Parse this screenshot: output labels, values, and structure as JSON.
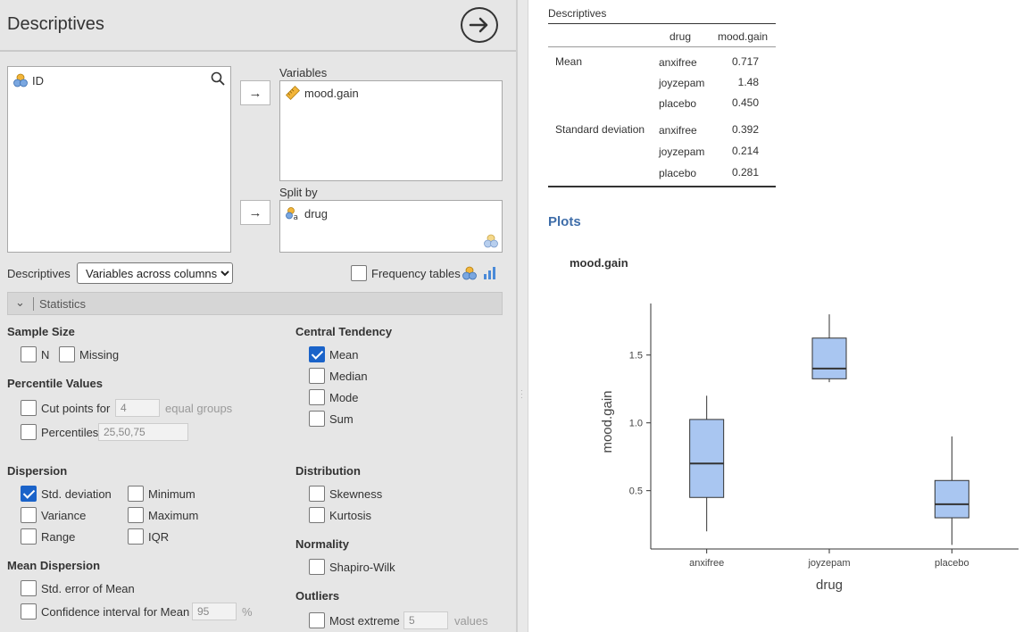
{
  "panel": {
    "title": "Descriptives",
    "source_vars": [
      {
        "name": "ID",
        "icon": "nominal-variable-icon"
      }
    ],
    "variables_label": "Variables",
    "variables": [
      {
        "name": "mood.gain",
        "icon": "continuous-variable-icon"
      }
    ],
    "split_label": "Split by",
    "split_vars": [
      {
        "name": "drug",
        "icon": "nominal-text-variable-icon"
      }
    ],
    "descriptives_label": "Descriptives",
    "descriptives_select": "Variables across columns",
    "frequency_tables_label": "Frequency tables",
    "frequency_tables_checked": false,
    "statistics_section": "Statistics"
  },
  "options": {
    "sample_size": {
      "heading": "Sample Size",
      "n": "N",
      "n_checked": false,
      "missing": "Missing",
      "missing_checked": false
    },
    "percentile_values": {
      "heading": "Percentile Values",
      "cut_points_label": "Cut points for",
      "cut_points_value": "4",
      "cut_points_suffix": "equal groups",
      "cut_points_checked": false,
      "percentiles_label": "Percentiles",
      "percentiles_value": "25,50,75",
      "percentiles_checked": false
    },
    "dispersion": {
      "heading": "Dispersion",
      "std": "Std. deviation",
      "std_checked": true,
      "minimum": "Minimum",
      "minimum_checked": false,
      "variance": "Variance",
      "variance_checked": false,
      "maximum": "Maximum",
      "maximum_checked": false,
      "range": "Range",
      "range_checked": false,
      "iqr": "IQR",
      "iqr_checked": false
    },
    "mean_dispersion": {
      "heading": "Mean Dispersion",
      "se": "Std. error of Mean",
      "se_checked": false,
      "ci": "Confidence interval for Mean",
      "ci_checked": false,
      "ci_value": "95",
      "ci_unit": "%"
    },
    "central_tendency": {
      "heading": "Central Tendency",
      "mean": "Mean",
      "mean_checked": true,
      "median": "Median",
      "median_checked": false,
      "mode": "Mode",
      "mode_checked": false,
      "sum": "Sum",
      "sum_checked": false
    },
    "distribution": {
      "heading": "Distribution",
      "skewness": "Skewness",
      "skewness_checked": false,
      "kurtosis": "Kurtosis",
      "kurtosis_checked": false
    },
    "normality": {
      "heading": "Normality",
      "shapiro": "Shapiro-Wilk",
      "shapiro_checked": false
    },
    "outliers": {
      "heading": "Outliers",
      "most_extreme": "Most extreme",
      "most_extreme_checked": false,
      "most_extreme_value": "5",
      "values_suffix": "values"
    }
  },
  "results": {
    "table_title": "Descriptives",
    "columns": [
      "",
      "drug",
      "mood.gain"
    ],
    "rows": [
      {
        "stat": "Mean",
        "drug": "anxifree",
        "value": "0.717"
      },
      {
        "stat": "",
        "drug": "joyzepam",
        "value": "1.48"
      },
      {
        "stat": "",
        "drug": "placebo",
        "value": "0.450"
      },
      {
        "stat": "Standard deviation",
        "drug": "anxifree",
        "value": "0.392"
      },
      {
        "stat": "",
        "drug": "joyzepam",
        "value": "0.214"
      },
      {
        "stat": "",
        "drug": "placebo",
        "value": "0.281"
      }
    ],
    "plots_heading": "Plots",
    "plot_title": "mood.gain"
  },
  "chart_data": {
    "type": "boxplot",
    "title": "",
    "xlabel": "drug",
    "ylabel": "mood.gain",
    "categories": [
      "anxifree",
      "joyzepam",
      "placebo"
    ],
    "boxes": [
      {
        "name": "anxifree",
        "whisker_low": 0.2,
        "q1": 0.45,
        "median": 0.7,
        "q3": 1.025,
        "whisker_high": 1.2
      },
      {
        "name": "joyzepam",
        "whisker_low": 1.3,
        "q1": 1.325,
        "median": 1.4,
        "q3": 1.625,
        "whisker_high": 1.8
      },
      {
        "name": "placebo",
        "whisker_low": 0.1,
        "q1": 0.3,
        "median": 0.4,
        "q3": 0.575,
        "whisker_high": 0.9
      }
    ],
    "yticks": [
      0.5,
      1.0,
      1.5
    ],
    "ytick_labels": [
      "0.5",
      "1.0",
      "1.5"
    ],
    "ylim": [
      0.07,
      1.88
    ],
    "box_color": "#a9c6f1",
    "grid": false
  }
}
